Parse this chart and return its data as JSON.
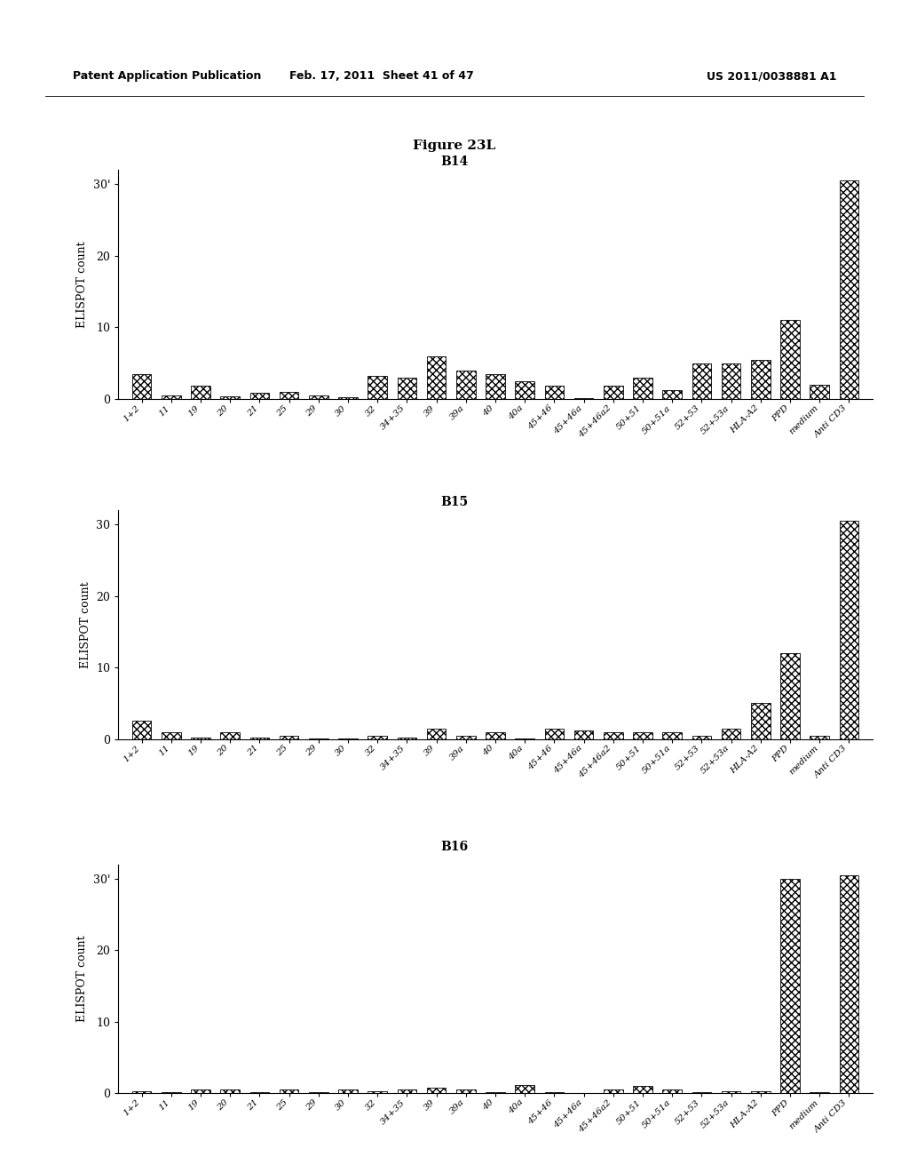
{
  "header_left": "Patent Application Publication",
  "header_mid": "Feb. 17, 2011  Sheet 41 of 47",
  "header_right": "US 2011/0038881 A1",
  "figure_title": "Figure 23L",
  "background_color": "#ffffff",
  "panels": [
    {
      "title": "B14",
      "ylabel": "ELISPOT count",
      "ylim": [
        0,
        32
      ],
      "yticks": [
        0,
        10,
        20,
        30
      ],
      "ytick_labels": [
        "0",
        "10",
        "20",
        "30'"
      ],
      "categories": [
        "1+2",
        "11",
        "19",
        "20",
        "21",
        "25",
        "29",
        "30",
        "32",
        "34+35",
        "39",
        "39a",
        "40",
        "40a",
        "45+46",
        "45+46a",
        "45+46a2",
        "50+51",
        "50+51a",
        "52+53",
        "52+53a",
        "HLA-A2",
        "PPD",
        "medium",
        "Anti CD3"
      ],
      "values": [
        3.5,
        0.5,
        1.8,
        0.3,
        0.8,
        1.0,
        0.5,
        0.2,
        3.2,
        3.0,
        6.0,
        4.0,
        3.5,
        2.5,
        1.8,
        0.1,
        1.8,
        3.0,
        1.2,
        5.0,
        5.0,
        5.5,
        11.0,
        2.0,
        30.5
      ]
    },
    {
      "title": "B15",
      "ylabel": "ELISPOT count",
      "ylim": [
        0,
        32
      ],
      "yticks": [
        0,
        10,
        20,
        30
      ],
      "ytick_labels": [
        "0",
        "10",
        "20",
        "30"
      ],
      "categories": [
        "1+2",
        "11",
        "19",
        "20",
        "21",
        "25",
        "29",
        "30",
        "32",
        "34+35",
        "39",
        "39a",
        "40",
        "40a",
        "45+46",
        "45+46a",
        "45+46a2",
        "50+51",
        "50+51a",
        "52+53",
        "52+53a",
        "HLA-A2",
        "PPD",
        "medium",
        "Anti CD3"
      ],
      "values": [
        2.5,
        1.0,
        0.2,
        1.0,
        0.2,
        0.5,
        0.1,
        0.1,
        0.5,
        0.2,
        1.5,
        0.5,
        1.0,
        0.1,
        1.5,
        1.2,
        1.0,
        1.0,
        1.0,
        0.5,
        1.5,
        5.0,
        12.0,
        0.5,
        30.5
      ]
    },
    {
      "title": "B16",
      "ylabel": "ELISPOT count",
      "ylim": [
        0,
        32
      ],
      "yticks": [
        0,
        10,
        20,
        30
      ],
      "ytick_labels": [
        "0",
        "10",
        "20",
        "30'"
      ],
      "categories": [
        "1+2",
        "11",
        "19",
        "20",
        "21",
        "25",
        "29",
        "30",
        "32",
        "34+35",
        "39",
        "39a",
        "40",
        "40a",
        "45+46",
        "45+46a",
        "45+46a2",
        "50+51",
        "50+51a",
        "52+53",
        "52+53a",
        "HLA-A2",
        "PPD",
        "medium",
        "Anti CD3"
      ],
      "values": [
        0.3,
        0.1,
        0.5,
        0.5,
        0.2,
        0.5,
        0.1,
        0.5,
        0.3,
        0.5,
        0.8,
        0.5,
        0.1,
        1.2,
        0.2,
        0.0,
        0.5,
        1.0,
        0.5,
        0.2,
        0.3,
        0.3,
        30.0,
        0.2,
        30.5
      ]
    }
  ]
}
